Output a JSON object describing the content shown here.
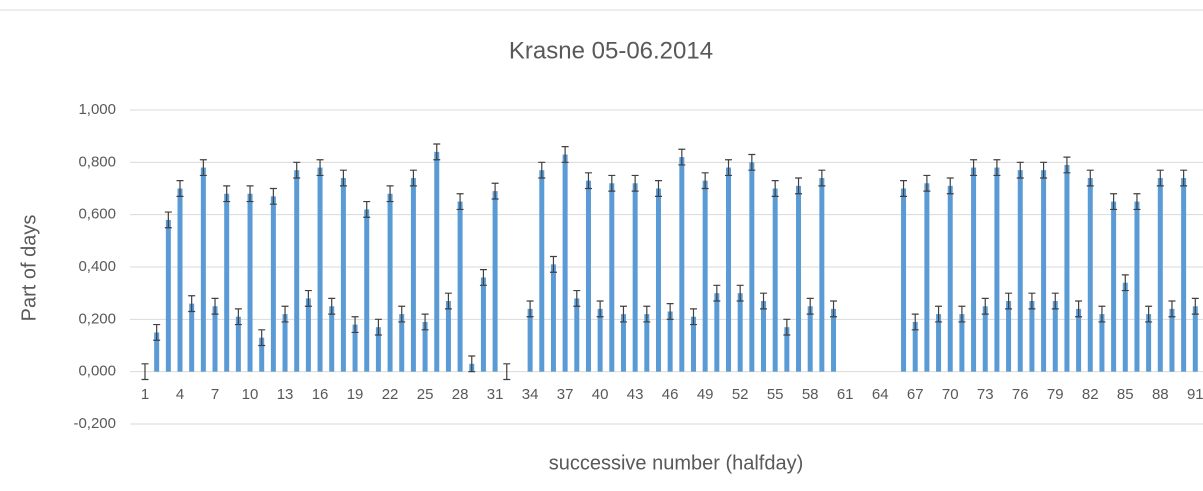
{
  "chart_data": {
    "type": "bar",
    "title": "Krasne 05-06.2014",
    "x_label": "successive number (halfday)",
    "y_label": "Part of days",
    "categories": [
      "1",
      null,
      null,
      "4",
      null,
      null,
      "7",
      null,
      null,
      "10",
      null,
      null,
      "13",
      null,
      null,
      "16",
      null,
      null,
      "19",
      null,
      null,
      "22",
      null,
      null,
      "25",
      null,
      null,
      "28",
      null,
      null,
      "31",
      null,
      null,
      "34",
      null,
      null,
      "37",
      null,
      null,
      "40",
      null,
      null,
      "43",
      null,
      null,
      "46",
      null,
      null,
      "49",
      null,
      null,
      "52",
      null,
      null,
      "55",
      null,
      null,
      "58",
      null,
      null,
      "61",
      null,
      null,
      "64",
      null,
      null,
      "67",
      null,
      null,
      "70",
      null,
      null,
      "73",
      null,
      null,
      "76",
      null,
      null,
      "79",
      null,
      null,
      "82",
      null,
      null,
      "85",
      null,
      null,
      "88",
      null,
      null,
      "91"
    ],
    "series": [
      {
        "color": "#5b9bd5",
        "values": [
          0.0,
          0.15,
          0.58,
          0.7,
          0.26,
          0.78,
          0.25,
          0.68,
          0.21,
          0.68,
          0.13,
          0.67,
          0.22,
          0.77,
          0.28,
          0.78,
          0.25,
          0.74,
          0.18,
          0.62,
          0.17,
          0.68,
          0.22,
          0.74,
          0.19,
          0.84,
          0.27,
          0.65,
          0.03,
          0.36,
          0.69,
          0.0,
          null,
          0.24,
          0.77,
          0.41,
          0.83,
          0.28,
          0.73,
          0.24,
          0.72,
          0.22,
          0.72,
          0.22,
          0.7,
          0.23,
          0.82,
          0.21,
          0.73,
          0.3,
          0.78,
          0.3,
          0.8,
          0.27,
          0.7,
          0.17,
          0.71,
          0.25,
          0.74,
          0.24,
          null,
          null,
          null,
          null,
          null,
          0.7,
          0.19,
          0.72,
          0.22,
          0.71,
          0.22,
          0.78,
          0.25,
          0.78,
          0.27,
          0.77,
          0.27,
          0.77,
          0.27,
          0.79,
          0.24,
          0.74,
          0.22,
          0.65,
          0.34,
          0.65,
          0.22,
          0.74,
          0.24,
          0.74,
          0.25
        ]
      }
    ],
    "error": 0.03,
    "ylim": [
      -0.2,
      1.0
    ],
    "yticks": [
      {
        "value": -0.2,
        "label": "-0,200"
      },
      {
        "value": 0,
        "label": "0,000"
      },
      {
        "value": 0.2,
        "label": "0,200"
      },
      {
        "value": 0.4,
        "label": "0,400"
      },
      {
        "value": 0.6,
        "label": "0,600"
      },
      {
        "value": 0.8,
        "label": "0,800"
      },
      {
        "value": 1.0,
        "label": "1,000"
      }
    ],
    "grid": true
  }
}
